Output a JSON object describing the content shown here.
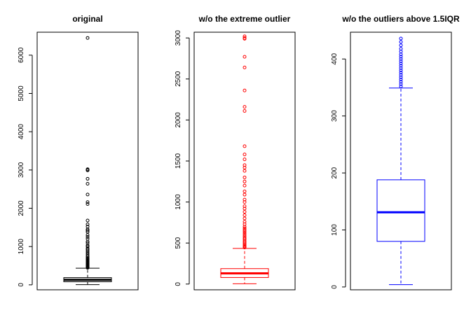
{
  "chart_data": [
    {
      "type": "box",
      "title": "original",
      "color": "#000000",
      "ylim": [
        -130,
        6600
      ],
      "yticks": [
        0,
        1000,
        2000,
        3000,
        4000,
        5000,
        6000
      ],
      "ytick_labels": [
        "0",
        "1000",
        "2000",
        "3000",
        "4000",
        "5000",
        "6000"
      ],
      "box": {
        "whisker_low": 4,
        "q1": 80,
        "median": 131,
        "q3": 188,
        "whisker_high": 435
      },
      "outliers": [
        445,
        455,
        465,
        480,
        495,
        510,
        525,
        545,
        560,
        580,
        600,
        620,
        640,
        660,
        680,
        700,
        730,
        760,
        800,
        840,
        880,
        920,
        950,
        1000,
        1030,
        1090,
        1130,
        1200,
        1250,
        1300,
        1380,
        1420,
        1450,
        1520,
        1580,
        1680,
        2110,
        2160,
        2360,
        2640,
        2770,
        2990,
        3000,
        3020,
        6450
      ]
    },
    {
      "type": "box",
      "title": "w/o the extreme outlier",
      "color": "#ff0000",
      "ylim": [
        -70,
        3070
      ],
      "yticks": [
        0,
        500,
        1000,
        1500,
        2000,
        2500,
        3000
      ],
      "ytick_labels": [
        "0",
        "500",
        "1000",
        "1500",
        "2000",
        "2500",
        "3000"
      ],
      "box": {
        "whisker_low": 4,
        "q1": 80,
        "median": 131,
        "q3": 188,
        "whisker_high": 435
      },
      "outliers": [
        445,
        455,
        465,
        480,
        495,
        510,
        525,
        545,
        560,
        580,
        600,
        620,
        640,
        660,
        680,
        700,
        730,
        760,
        800,
        840,
        880,
        920,
        950,
        1000,
        1030,
        1090,
        1130,
        1200,
        1250,
        1300,
        1380,
        1420,
        1450,
        1520,
        1580,
        1680,
        2110,
        2160,
        2360,
        2640,
        2770,
        2990,
        3000,
        3020
      ]
    },
    {
      "type": "box",
      "title": "w/o the outliers above 1.5IQR",
      "color": "#0000ff",
      "ylim": [
        -5,
        447
      ],
      "yticks": [
        0,
        100,
        200,
        300,
        400
      ],
      "ytick_labels": [
        "0",
        "100",
        "200",
        "300",
        "400"
      ],
      "box": {
        "whisker_low": 4,
        "q1": 80,
        "median": 131,
        "q3": 188,
        "whisker_high": 349
      },
      "outliers": [
        352,
        356,
        360,
        364,
        368,
        372,
        376,
        380,
        384,
        388,
        392,
        396,
        400,
        404,
        408,
        413,
        418,
        424,
        430,
        436
      ]
    }
  ]
}
